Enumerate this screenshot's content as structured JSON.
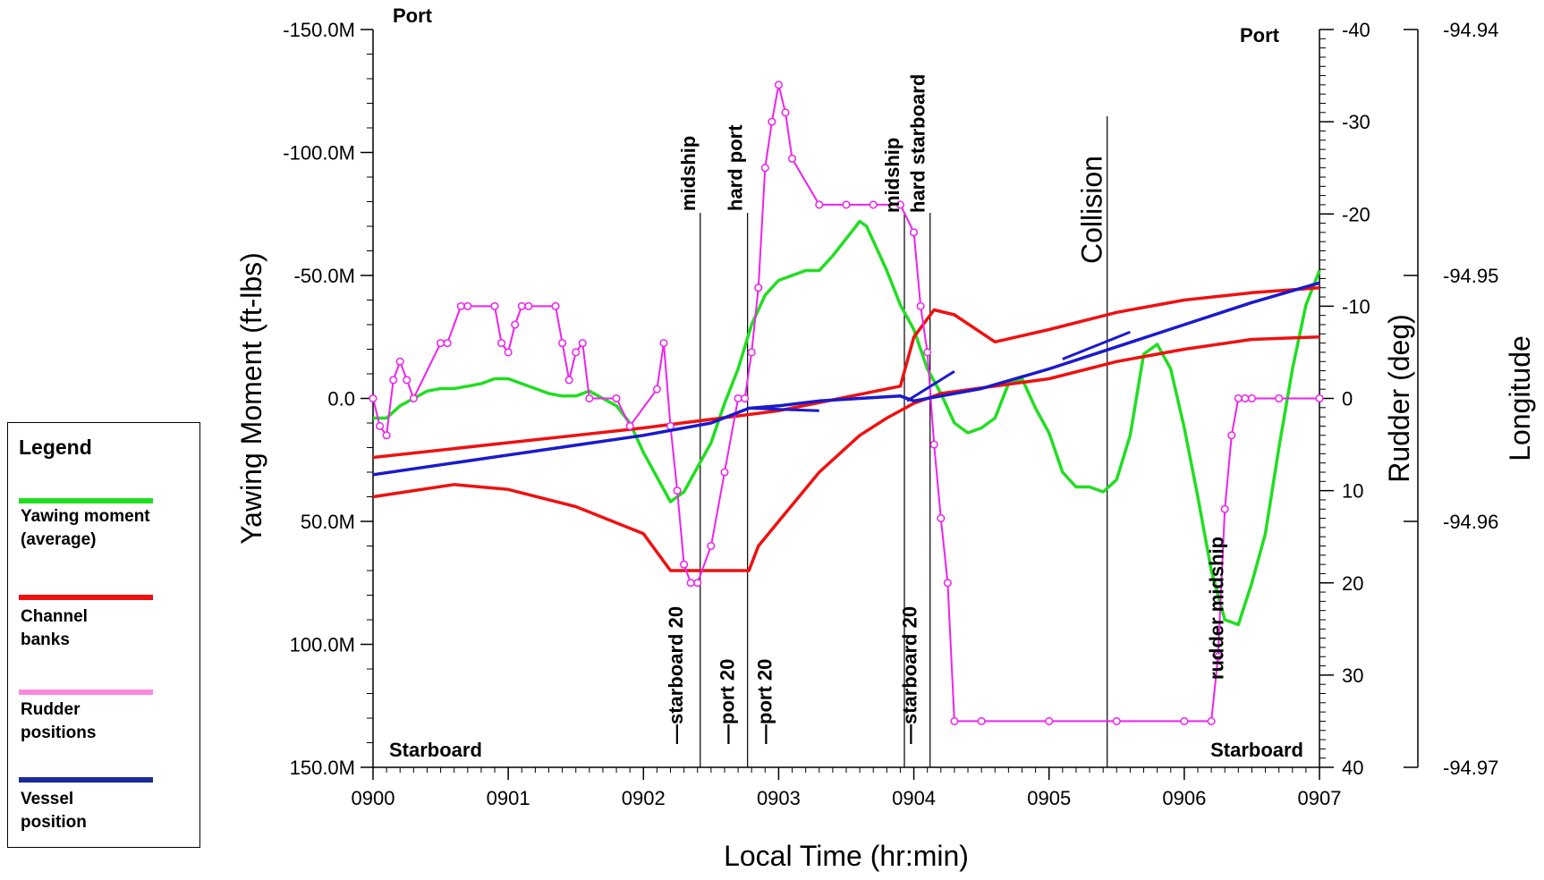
{
  "chart_data": {
    "type": "line",
    "title": "",
    "xlabel": "Local Time (hr:min)",
    "ylabel_left": "Yawing Moment (ft-lbs)",
    "ylabel_right": "Rudder (deg)",
    "ylabel_far_right": "Longitude",
    "x_ticks": [
      "0900",
      "0901",
      "0902",
      "0903",
      "0904",
      "0905",
      "0906",
      "0907"
    ],
    "xlim": [
      0,
      7
    ],
    "y_left_ticks": [
      "-150.0M",
      "-100.0M",
      "-50.0M",
      "0.0",
      "50.0M",
      "100.0M",
      "150.0M"
    ],
    "y_left_lim": [
      -150,
      150
    ],
    "y_right_ticks": [
      "-40",
      "-30",
      "-20",
      "-10",
      "0",
      "10",
      "20",
      "30",
      "40"
    ],
    "y_right_lim": [
      -40,
      40
    ],
    "y_far_right_ticks": [
      "-94.94",
      "-94.95",
      "-94.96",
      "-94.97"
    ],
    "y_far_right_lim": [
      -94.94,
      -94.97
    ],
    "corner_labels": {
      "top_left": "Port",
      "top_right": "Port",
      "bottom_left": "Starboard",
      "bottom_right": "Starboard"
    },
    "grid": false,
    "series": [
      {
        "name": "Yawing moment (average)",
        "color": "#22dd22",
        "axis": "left",
        "x": [
          0,
          0.1,
          0.2,
          0.3,
          0.4,
          0.5,
          0.6,
          0.7,
          0.8,
          0.9,
          1.0,
          1.1,
          1.2,
          1.3,
          1.4,
          1.5,
          1.6,
          1.7,
          1.8,
          1.9,
          2.0,
          2.1,
          2.2,
          2.3,
          2.4,
          2.5,
          2.6,
          2.7,
          2.8,
          2.9,
          3.0,
          3.1,
          3.2,
          3.3,
          3.4,
          3.5,
          3.6,
          3.65,
          3.75,
          3.8,
          3.9,
          4.0,
          4.1,
          4.2,
          4.3,
          4.4,
          4.5,
          4.6,
          4.7,
          4.8,
          4.9,
          5.0,
          5.1,
          5.2,
          5.3,
          5.4,
          5.5,
          5.6,
          5.7,
          5.8,
          5.9,
          6.0,
          6.1,
          6.2,
          6.3,
          6.4,
          6.5,
          6.6,
          6.7,
          6.8,
          6.9,
          7.0
        ],
        "y": [
          8,
          8,
          3,
          0,
          -3,
          -4,
          -4,
          -5,
          -6,
          -8,
          -8,
          -6,
          -4,
          -2,
          -1,
          -1,
          -3,
          0,
          3,
          10,
          22,
          32,
          42,
          38,
          28,
          18,
          2,
          -12,
          -30,
          -42,
          -48,
          -50,
          -52,
          -52,
          -58,
          -65,
          -72,
          -70,
          -58,
          -52,
          -38,
          -28,
          -12,
          -2,
          10,
          14,
          12,
          8,
          -6,
          -8,
          4,
          14,
          30,
          36,
          36,
          38,
          33,
          15,
          -18,
          -22,
          -12,
          12,
          40,
          70,
          90,
          92,
          75,
          55,
          20,
          -12,
          -38,
          -52
        ]
      },
      {
        "name": "Channel banks",
        "color": "#ee1111",
        "axis": "left",
        "x": [
          0,
          1,
          2,
          3,
          3.9,
          4.0,
          4.15,
          4.3,
          4.6,
          5.0,
          5.5,
          6.0,
          6.5,
          7.0
        ],
        "y": [
          24,
          18,
          12,
          5,
          -5,
          -25,
          -36,
          -34,
          -23,
          -28,
          -35,
          -40,
          -43,
          -45
        ]
      },
      {
        "name": "Channel banks",
        "color": "#ee1111",
        "axis": "left",
        "x": [
          0,
          0.6,
          1.0,
          1.5,
          2.0,
          2.2,
          2.5,
          2.78,
          2.85,
          3.0,
          3.3,
          3.6,
          3.8,
          4.0,
          4.2,
          5.0,
          5.5,
          6.0,
          6.5,
          7.0
        ],
        "y": [
          40,
          35,
          37,
          44,
          55,
          70,
          70,
          70,
          60,
          50,
          30,
          15,
          8,
          2,
          -2,
          -8,
          -15,
          -20,
          -24,
          -25
        ]
      },
      {
        "name": "Rudder positions",
        "color": "#ee22ee",
        "axis": "right",
        "x": [
          0,
          0.05,
          0.1,
          0.15,
          0.2,
          0.25,
          0.3,
          0.5,
          0.55,
          0.65,
          0.7,
          0.9,
          0.95,
          1.0,
          1.05,
          1.1,
          1.15,
          1.35,
          1.4,
          1.45,
          1.5,
          1.55,
          1.6,
          1.8,
          1.9,
          2.1,
          2.15,
          2.2,
          2.25,
          2.3,
          2.35,
          2.4,
          2.5,
          2.6,
          2.7,
          2.75,
          2.8,
          2.85,
          2.9,
          2.95,
          3.0,
          3.05,
          3.1,
          3.3,
          3.5,
          3.7,
          3.9,
          4.0,
          4.05,
          4.1,
          4.15,
          4.2,
          4.25,
          4.3,
          4.5,
          5.0,
          5.5,
          6.0,
          6.2,
          6.25,
          6.3,
          6.35,
          6.4,
          6.45,
          6.5,
          6.7,
          7.0
        ],
        "y": [
          0,
          3,
          4,
          -2,
          -4,
          -2,
          0,
          -6,
          -6,
          -10,
          -10,
          -10,
          -6,
          -5,
          -8,
          -10,
          -10,
          -10,
          -6,
          -2,
          -5,
          -6,
          0,
          0,
          3,
          -1,
          -6,
          3,
          10,
          18,
          20,
          20,
          16,
          8,
          0,
          0,
          -5,
          -12,
          -25,
          -30,
          -34,
          -31,
          -26,
          -21,
          -21,
          -21,
          -21,
          -18,
          -10,
          -5,
          5,
          13,
          20,
          35,
          35,
          35,
          35,
          35,
          35,
          28,
          12,
          4,
          0,
          0,
          0,
          0,
          0
        ]
      },
      {
        "name": "Vessel position",
        "color": "#1a1acc",
        "axis": "left",
        "x": [
          0,
          1,
          2,
          2.5,
          2.78,
          3.0,
          3.3,
          3.9,
          4.0,
          4.5,
          5.0,
          5.5,
          6.0,
          6.5,
          7.0
        ],
        "y": [
          31,
          23,
          15,
          10,
          4,
          3,
          1,
          -1,
          1,
          -4,
          -12,
          -21,
          -30,
          -39,
          -47
        ]
      }
    ],
    "vertical_markers": [
      {
        "x": 2.42,
        "top_label": "midship",
        "bottom_label": "starboard 20"
      },
      {
        "x": 2.77,
        "top_label": "hard port",
        "bottom_label": "port 20"
      },
      {
        "x": 3.93,
        "top_label": "midship",
        "bottom_label": "port 20"
      },
      {
        "x": 4.12,
        "top_label": "hard starboard",
        "bottom_label": "starboard 20"
      },
      {
        "x": 5.43,
        "top_label": "Collision",
        "bottom_label": ""
      }
    ]
  },
  "legend": {
    "title": "Legend",
    "items": [
      {
        "label": "Yawing moment (average)",
        "color": "#22dd22"
      },
      {
        "label": "Channel banks",
        "color": "#ee1111"
      },
      {
        "label": "Rudder positions",
        "color": "#ff88dd"
      },
      {
        "label": "Vessel position",
        "color": "#1a2a99"
      }
    ]
  }
}
